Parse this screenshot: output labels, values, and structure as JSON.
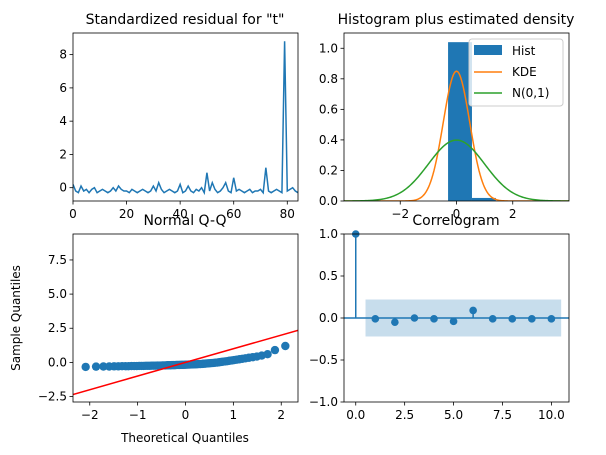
{
  "colors": {
    "blue": "#1f77b4",
    "orange": "#ff7f0e",
    "green": "#2ca02c",
    "red": "#ff0000",
    "band": "#1f77b4"
  },
  "chart_data": [
    {
      "type": "line",
      "title": "Standardized residual for \"t\"",
      "xlabel": "",
      "ylabel": "",
      "xlim": [
        0,
        84
      ],
      "ylim": [
        -0.8,
        9.3
      ],
      "xticks": [
        0,
        20,
        40,
        60,
        80
      ],
      "yticks": [
        0,
        2,
        4,
        6,
        8
      ],
      "series": [
        {
          "values": [
            0.2,
            -0.2,
            -0.3,
            0.1,
            -0.2,
            -0.1,
            -0.3,
            -0.1,
            0.0,
            -0.3,
            -0.2,
            -0.1,
            -0.2,
            -0.3,
            -0.2,
            0.0,
            -0.2,
            0.1,
            -0.1,
            -0.2,
            -0.2,
            -0.3,
            -0.1,
            -0.2,
            -0.3,
            -0.2,
            -0.1,
            -0.2,
            -0.3,
            -0.2,
            0.1,
            -0.2,
            0.3,
            -0.1,
            -0.3,
            -0.2,
            -0.1,
            -0.2,
            -0.3,
            -0.2,
            0.2,
            -0.3,
            -0.2,
            0.1,
            -0.2,
            -0.3,
            -0.1,
            -0.2,
            0.0,
            -0.3,
            0.9,
            -0.2,
            0.3,
            -0.1,
            -0.3,
            -0.2,
            0.0,
            0.3,
            -0.2,
            -0.3,
            0.6,
            -0.2,
            -0.1,
            -0.2,
            -0.3,
            -0.2,
            -0.1,
            -0.3,
            -0.2,
            -0.2,
            -0.1,
            -0.3,
            1.2,
            -0.2,
            -0.3,
            -0.2,
            -0.1,
            -0.2,
            -0.3,
            8.8,
            -0.2,
            -0.1,
            0.0,
            -0.2,
            -0.3
          ]
        }
      ]
    },
    {
      "type": "histogram",
      "title": "Histogram plus estimated density",
      "xlim": [
        -4,
        4
      ],
      "ylim": [
        0,
        1.1
      ],
      "xticks": [
        -2,
        0,
        2
      ],
      "yticks": [
        0.0,
        0.2,
        0.4,
        0.6,
        0.8,
        1.0
      ],
      "bins": [
        {
          "x0": -0.3,
          "x1": 0.55,
          "value": 1.04
        },
        {
          "x0": 0.55,
          "x1": 1.4,
          "value": 0.02
        }
      ],
      "kde": {
        "mean": 0.0,
        "sd": 0.47,
        "peak": 0.85
      },
      "normal": {
        "mean": 0.0,
        "sd": 1.0
      },
      "legend": [
        "Hist",
        "KDE",
        "N(0,1)"
      ],
      "legend_position": "top-right"
    },
    {
      "type": "scatter",
      "title": "Normal Q-Q",
      "xlabel": "Theoretical Quantiles",
      "ylabel": "Sample Quantiles",
      "xlim": [
        -2.35,
        2.35
      ],
      "ylim": [
        -2.9,
        9.4
      ],
      "xticks": [
        -2,
        -1,
        0,
        1,
        2
      ],
      "yticks": [
        -2.5,
        0.0,
        2.5,
        5.0,
        7.5
      ],
      "points_y": [
        -0.35,
        -0.33,
        -0.31,
        -0.3,
        -0.3,
        -0.29,
        -0.29,
        -0.28,
        -0.28,
        -0.28,
        -0.27,
        -0.27,
        -0.27,
        -0.26,
        -0.26,
        -0.26,
        -0.25,
        -0.25,
        -0.25,
        -0.24,
        -0.24,
        -0.24,
        -0.23,
        -0.23,
        -0.23,
        -0.22,
        -0.22,
        -0.22,
        -0.21,
        -0.21,
        -0.21,
        -0.2,
        -0.2,
        -0.2,
        -0.19,
        -0.19,
        -0.19,
        -0.18,
        -0.18,
        -0.18,
        -0.17,
        -0.17,
        -0.16,
        -0.16,
        -0.15,
        -0.15,
        -0.14,
        -0.14,
        -0.13,
        -0.12,
        -0.12,
        -0.11,
        -0.1,
        -0.09,
        -0.08,
        -0.07,
        -0.06,
        -0.05,
        -0.04,
        -0.02,
        -0.01,
        0.01,
        0.03,
        0.05,
        0.07,
        0.09,
        0.12,
        0.14,
        0.17,
        0.2,
        0.23,
        0.26,
        0.3,
        0.34,
        0.38,
        0.43,
        0.5,
        0.6,
        0.9,
        1.2,
        8.8
      ],
      "line": {
        "slope": 1.0,
        "intercept": 0.0
      }
    },
    {
      "type": "stem",
      "title": "Correlogram",
      "xlim": [
        -0.6,
        10.9
      ],
      "ylim": [
        -1.0,
        1.0
      ],
      "xticks": [
        0.0,
        2.5,
        5.0,
        7.5,
        10.0
      ],
      "yticks": [
        -1.0,
        -0.5,
        0.0,
        0.5,
        1.0
      ],
      "lags": [
        0,
        1,
        2,
        3,
        4,
        5,
        6,
        7,
        8,
        9,
        10
      ],
      "values": [
        1.0,
        -0.01,
        -0.05,
        0.0,
        -0.01,
        -0.04,
        0.09,
        -0.01,
        -0.01,
        -0.01,
        -0.01
      ],
      "conf_band": {
        "x_start": 0.5,
        "x_end": 10.5,
        "upper": 0.22,
        "lower": -0.22
      }
    }
  ]
}
